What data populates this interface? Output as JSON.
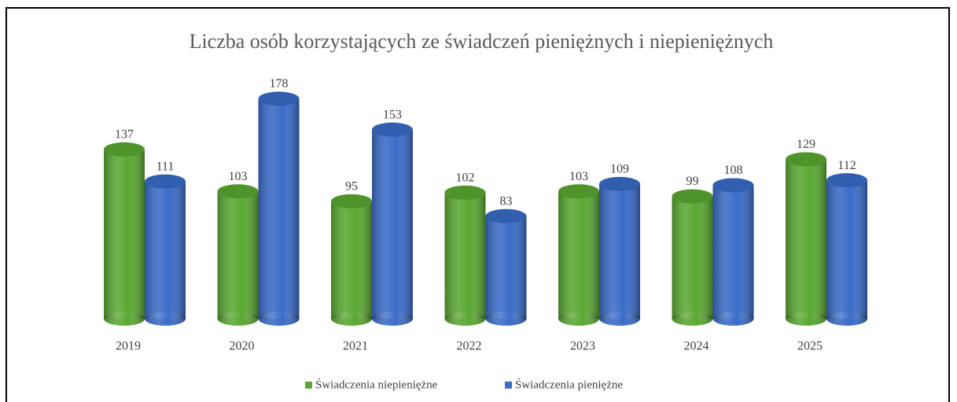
{
  "chart_data": {
    "type": "bar3d",
    "title": "Liczba osób korzystających ze świadczeń pieniężnych i niepieniężnych",
    "categories": [
      "2019",
      "2020",
      "2021",
      "2022",
      "2023",
      "2024",
      "2025"
    ],
    "series": [
      {
        "name": "Świadczenia niepieniężne",
        "color": "#5aa832",
        "values": [
          137,
          103,
          95,
          102,
          103,
          99,
          129
        ]
      },
      {
        "name": "Świadczenia pieniężne",
        "color": "#3a6cc8",
        "values": [
          111,
          178,
          153,
          83,
          109,
          108,
          112
        ]
      }
    ],
    "legend": "bottom"
  }
}
